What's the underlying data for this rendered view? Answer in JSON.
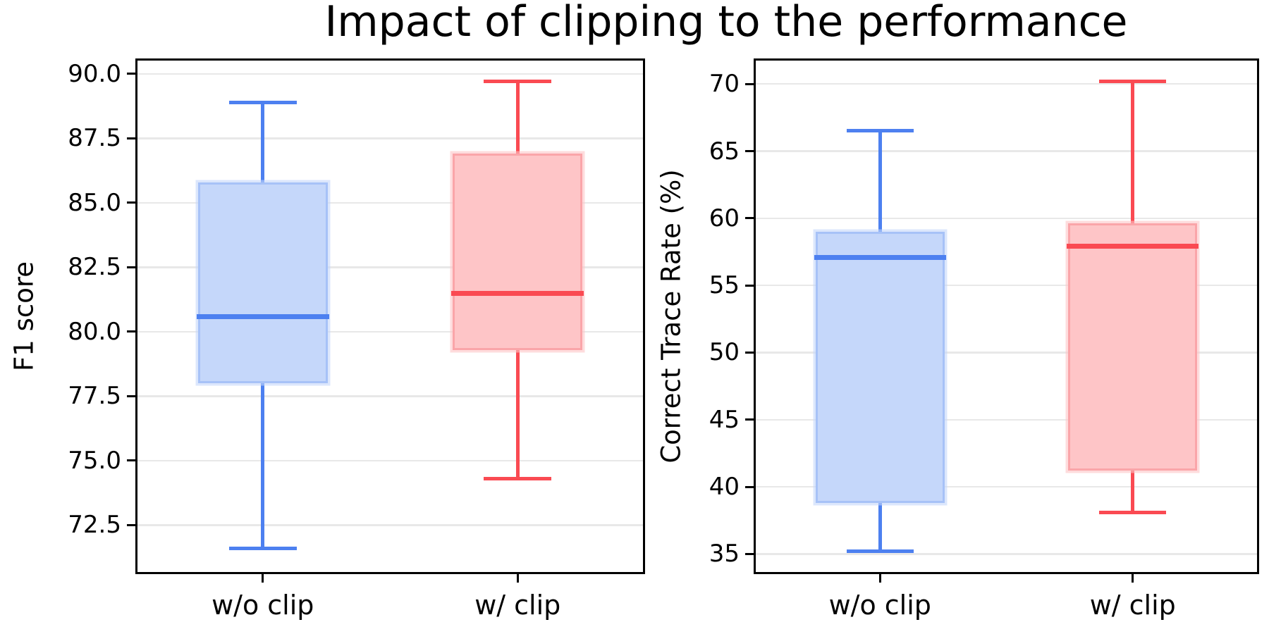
{
  "title": "Impact of clipping to the performance",
  "colors": {
    "blue_line": "#4d80f0",
    "blue_fill": "#c5d7fa",
    "blue_edge": "#a7c2f7",
    "red_line": "#fa4a52",
    "red_fill": "#fec5c7",
    "red_edge": "#faa5a9",
    "grid": "#e8e8e8",
    "spine": "#000000"
  },
  "chart_data": [
    {
      "type": "box",
      "ylabel": "F1 score",
      "categories": [
        "w/o clip",
        "w/ clip"
      ],
      "yticks": [
        72.5,
        75.0,
        77.5,
        80.0,
        82.5,
        85.0,
        87.5,
        90.0
      ],
      "ytick_labels": [
        "72.5",
        "75.0",
        "77.5",
        "80.0",
        "82.5",
        "85.0",
        "87.5",
        "90.0"
      ],
      "ylim": [
        70.6,
        90.6
      ],
      "grid": true,
      "series": [
        {
          "name": "w/o clip",
          "color": "blue",
          "whislo": 71.6,
          "q1": 78.0,
          "med": 80.6,
          "q3": 85.8,
          "whishi": 88.9
        },
        {
          "name": "w/ clip",
          "color": "red",
          "whislo": 74.3,
          "q1": 79.3,
          "med": 81.5,
          "q3": 86.9,
          "whishi": 89.7
        }
      ]
    },
    {
      "type": "box",
      "ylabel": "Correct Trace Rate (%)",
      "categories": [
        "w/o clip",
        "w/ clip"
      ],
      "yticks": [
        35,
        40,
        45,
        50,
        55,
        60,
        65,
        70
      ],
      "ytick_labels": [
        "35",
        "40",
        "45",
        "50",
        "55",
        "60",
        "65",
        "70"
      ],
      "ylim": [
        33.5,
        71.9
      ],
      "grid": true,
      "series": [
        {
          "name": "w/o clip",
          "color": "blue",
          "whislo": 35.2,
          "q1": 38.8,
          "med": 57.1,
          "q3": 59.0,
          "whishi": 66.5
        },
        {
          "name": "w/ clip",
          "color": "red",
          "whislo": 38.1,
          "q1": 41.2,
          "med": 57.9,
          "q3": 59.6,
          "whishi": 70.2
        }
      ]
    }
  ]
}
